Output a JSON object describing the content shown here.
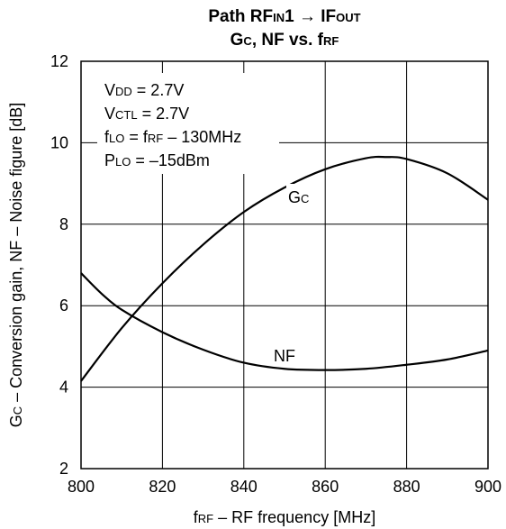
{
  "chart_data": {
    "type": "line",
    "title": "Path RFIN1 → IFOUT",
    "subtitle": "GC, NF vs. fRF",
    "xlabel": "fRF – RF frequency [MHz]",
    "ylabel": "GC – Conversion gain, NF – Noise figure [dB]",
    "xlim": [
      800,
      900
    ],
    "ylim": [
      2,
      12
    ],
    "xticks": [
      800,
      820,
      840,
      860,
      880,
      900
    ],
    "yticks": [
      2,
      4,
      6,
      8,
      10,
      12
    ],
    "grid": true,
    "conditions": [
      "VDD = 2.7V",
      "VCTL = 2.7V",
      "fLO = fRF – 130MHz",
      "PLO = –15dBm"
    ],
    "series": [
      {
        "name": "GC",
        "x": [
          800,
          810,
          820,
          830,
          840,
          850,
          860,
          870,
          875,
          880,
          890,
          900
        ],
        "values": [
          4.15,
          5.45,
          6.55,
          7.5,
          8.3,
          8.9,
          9.35,
          9.62,
          9.65,
          9.6,
          9.25,
          8.6
        ]
      },
      {
        "name": "NF",
        "x": [
          800,
          805,
          810,
          820,
          830,
          840,
          850,
          860,
          870,
          880,
          890,
          900
        ],
        "values": [
          6.8,
          6.3,
          5.9,
          5.35,
          4.92,
          4.6,
          4.45,
          4.42,
          4.45,
          4.55,
          4.68,
          4.9
        ]
      }
    ]
  }
}
